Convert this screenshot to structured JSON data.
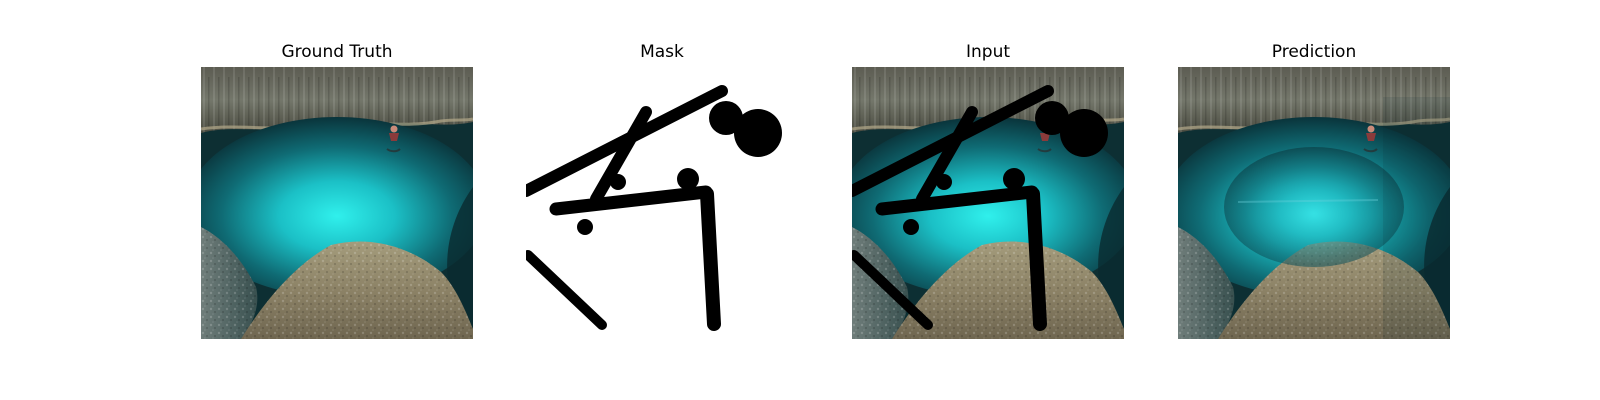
{
  "figure": {
    "panels": [
      {
        "title": "Ground Truth"
      },
      {
        "title": "Mask"
      },
      {
        "title": "Input"
      },
      {
        "title": "Prediction"
      }
    ]
  }
}
